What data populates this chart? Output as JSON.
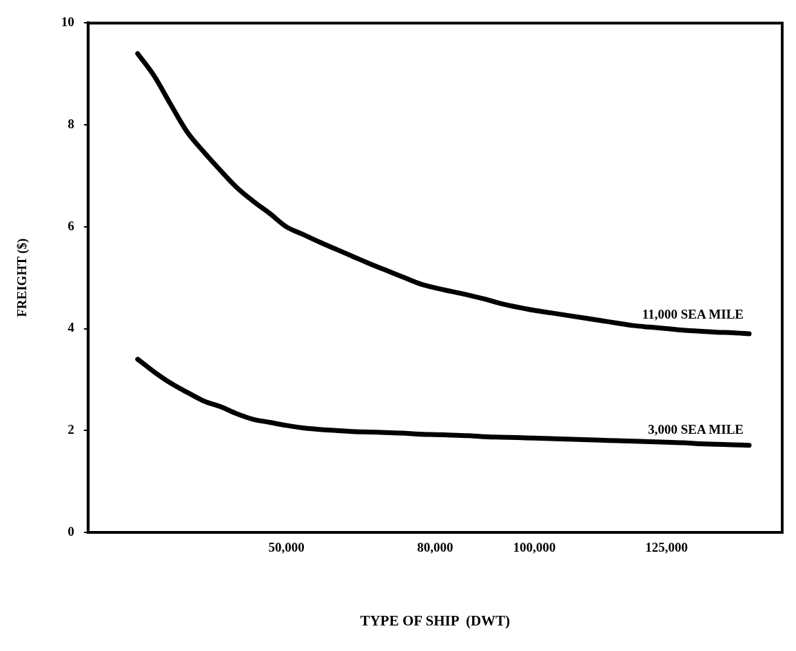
{
  "chart_data": {
    "type": "line",
    "xlabel": "TYPE OF SHIP  (DWT)",
    "ylabel": "FREIGHT ($)",
    "categories": [
      null,
      null,
      null,
      null,
      null,
      null,
      null,
      null,
      null,
      null,
      null,
      null,
      "50,000",
      null,
      null,
      null,
      null,
      null,
      null,
      null,
      null,
      "80,000",
      null,
      null,
      null,
      null,
      null,
      "100,000",
      null,
      null,
      null,
      null,
      null,
      null,
      null,
      "125,000",
      null,
      null,
      null,
      null,
      null,
      null,
      null
    ],
    "series": [
      {
        "name": "11,000 SEA MILE",
        "color": "#000000",
        "values": [
          null,
          null,
          null,
          9.4,
          8.96,
          8.4,
          7.86,
          7.47,
          7.11,
          6.77,
          6.5,
          6.26,
          6.0,
          5.85,
          5.7,
          5.56,
          5.42,
          5.28,
          5.15,
          5.02,
          4.89,
          4.8,
          4.73,
          4.66,
          4.58,
          4.49,
          4.42,
          4.36,
          4.31,
          4.26,
          4.21,
          4.16,
          4.11,
          4.06,
          4.03,
          4.0,
          3.97,
          3.95,
          3.93,
          3.92,
          3.9,
          null,
          null
        ]
      },
      {
        "name": "3,000 SEA MILE",
        "color": "#000000",
        "values": [
          null,
          null,
          null,
          3.4,
          3.15,
          2.93,
          2.75,
          2.58,
          2.47,
          2.33,
          2.22,
          2.16,
          2.1,
          2.05,
          2.02,
          2.0,
          1.98,
          1.97,
          1.96,
          1.95,
          1.93,
          1.92,
          1.91,
          1.9,
          1.88,
          1.87,
          1.86,
          1.85,
          1.84,
          1.83,
          1.82,
          1.81,
          1.8,
          1.79,
          1.78,
          1.77,
          1.76,
          1.74,
          1.73,
          1.72,
          1.71,
          null,
          null
        ]
      }
    ],
    "ylim": [
      0,
      10
    ],
    "yticks": [
      0,
      2,
      4,
      6,
      8,
      10
    ],
    "grid": false,
    "legend": false,
    "marker": "none",
    "line_style": "solid"
  }
}
